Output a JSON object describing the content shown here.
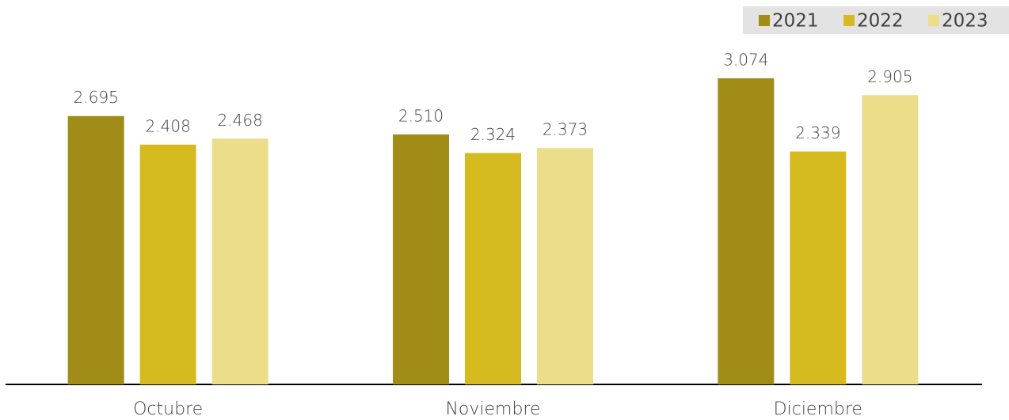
{
  "chart_data": {
    "type": "bar",
    "categories": [
      "Octubre",
      "Noviembre",
      "Diciembre"
    ],
    "series": [
      {
        "name": "2021",
        "color": "#a28c18",
        "values": [
          2695,
          2510,
          3074
        ],
        "value_labels": [
          "2.695",
          "2.510",
          "3.074"
        ]
      },
      {
        "name": "2022",
        "color": "#d6bb20",
        "values": [
          2408,
          2324,
          2339
        ],
        "value_labels": [
          "2.408",
          "2.324",
          "2.339"
        ]
      },
      {
        "name": "2023",
        "color": "#ecdd8a",
        "values": [
          2468,
          2373,
          2905
        ],
        "value_labels": [
          "2.468",
          "2.373",
          "2.905"
        ]
      }
    ],
    "legend": "top-right"
  }
}
